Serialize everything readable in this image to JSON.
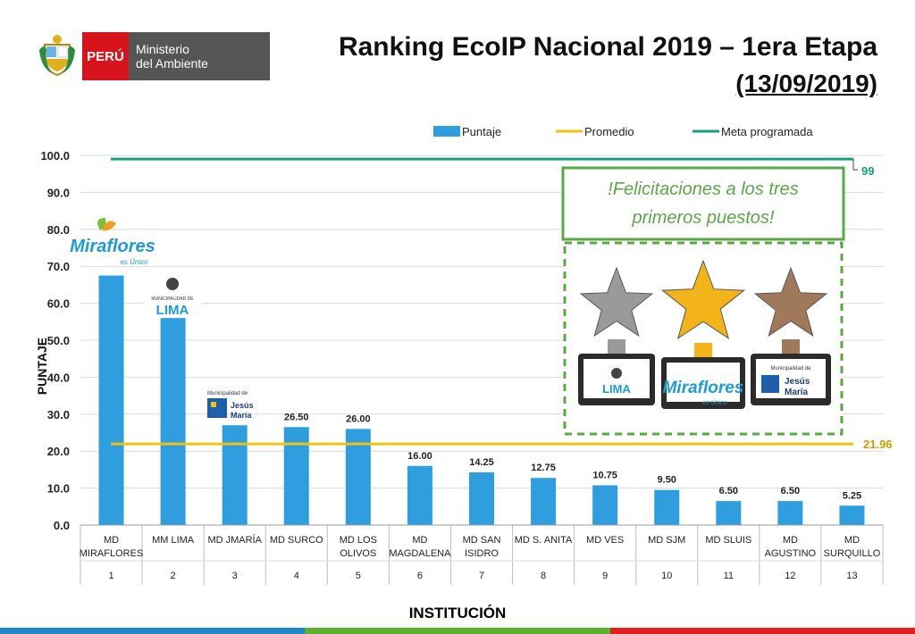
{
  "header": {
    "country": "PERÚ",
    "ministry_line1": "Ministerio",
    "ministry_line2": "del Ambiente",
    "title": "Ranking EcoIP Nacional 2019 – 1era Etapa",
    "subtitle": "(13/09/2019)"
  },
  "colors": {
    "bar": "#2e9ede",
    "average": "#f2c10f",
    "target": "#16a07a",
    "banner_border": "#5aa845",
    "banner_text": "#5aa845",
    "peru_red": "#d7131b",
    "bottom_bar": [
      "#1f86c8",
      "#5bb030",
      "#e32020"
    ]
  },
  "chart_data": {
    "type": "bar",
    "title": "",
    "xlabel": "INSTITUCIÓN",
    "ylabel": "PUNTAJE",
    "ylim": [
      0,
      100
    ],
    "yticks": [
      "0.0",
      "10.0",
      "20.0",
      "30.0",
      "40.0",
      "50.0",
      "60.0",
      "70.0",
      "80.0",
      "90.0",
      "100.0"
    ],
    "grid": true,
    "legend_position": "top",
    "legend": [
      "Puntaje",
      "Promedio",
      "Meta programada"
    ],
    "categories": [
      {
        "name": [
          "MD",
          "MIRAFLORES"
        ],
        "rank": "1"
      },
      {
        "name": [
          "MM LIMA"
        ],
        "rank": "2"
      },
      {
        "name": [
          "MD JMARÍA"
        ],
        "rank": "3"
      },
      {
        "name": [
          "MD SURCO"
        ],
        "rank": "4"
      },
      {
        "name": [
          "MD LOS",
          "OLIVOS"
        ],
        "rank": "5"
      },
      {
        "name": [
          "MD",
          "MAGDALENA"
        ],
        "rank": "6"
      },
      {
        "name": [
          "MD SAN",
          "ISIDRO"
        ],
        "rank": "7"
      },
      {
        "name": [
          "MD S. ANITA"
        ],
        "rank": "8"
      },
      {
        "name": [
          "MD VES"
        ],
        "rank": "9"
      },
      {
        "name": [
          "MD SJM"
        ],
        "rank": "10"
      },
      {
        "name": [
          "MD SLUIS"
        ],
        "rank": "11"
      },
      {
        "name": [
          "MD",
          "AGUSTINO"
        ],
        "rank": "12"
      },
      {
        "name": [
          "MD",
          "SURQUILLO"
        ],
        "rank": "13"
      }
    ],
    "series": [
      {
        "name": "Puntaje",
        "values": [
          67.5,
          56.0,
          27.0,
          26.5,
          26.0,
          16.0,
          14.25,
          12.75,
          10.75,
          9.5,
          6.5,
          6.5,
          5.25
        ]
      }
    ],
    "bar_labels": [
      "",
      "",
      "",
      "26.50",
      "26.00",
      "16.00",
      "14.25",
      "12.75",
      "10.75",
      "9.50",
      "6.50",
      "6.50",
      "5.25"
    ],
    "average": {
      "name": "Promedio",
      "value": 21.96,
      "label": "21.96"
    },
    "target": {
      "name": "Meta programada",
      "value": 99,
      "label": "99"
    },
    "logos": {
      "miraflores": [
        "Miraflores",
        "es Único"
      ],
      "lima": [
        "MUNICIPALIDAD DE",
        "LIMA"
      ],
      "jesus_maria": [
        "Municipalidad de",
        "Jesús",
        "María"
      ]
    },
    "banner": [
      "!Felicitaciones a los tres",
      "primeros puestos!"
    ]
  }
}
